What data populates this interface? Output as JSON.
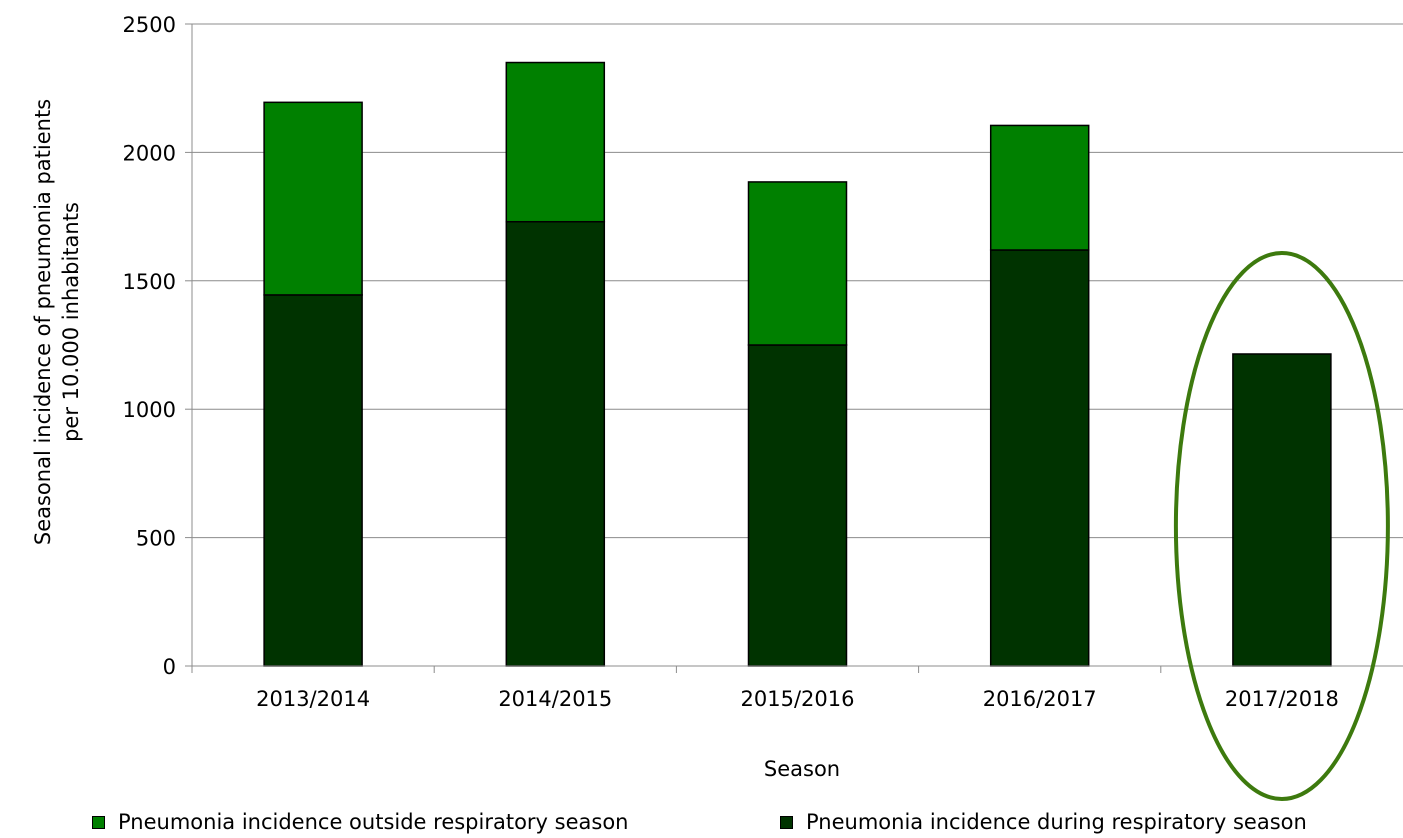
{
  "chart_data": {
    "type": "bar",
    "stacked": true,
    "categories": [
      "2013/2014",
      "2014/2015",
      "2015/2016",
      "2016/2017",
      "2017/2018"
    ],
    "series": [
      {
        "name": "Pneumonia incidence during respiratory season",
        "color": "#003300",
        "values": [
          1445,
          1730,
          1250,
          1620,
          1215
        ]
      },
      {
        "name": "Pneumonia incidence outside respiratory season",
        "color": "#008000",
        "values": [
          750,
          620,
          635,
          485,
          null
        ]
      }
    ],
    "xlabel": "Season",
    "ylabel_line1": "Seasonal incidence of  pneumonia patients",
    "ylabel_line2": "per 10.000 inhabitants",
    "ylim": [
      0,
      2500
    ],
    "yticks": [
      0,
      500,
      1000,
      1500,
      2000,
      2500
    ],
    "grid": true,
    "legend_position": "bottom",
    "highlight": {
      "category": "2017/2018",
      "shape": "ellipse",
      "color": "#3d7a0e"
    }
  }
}
